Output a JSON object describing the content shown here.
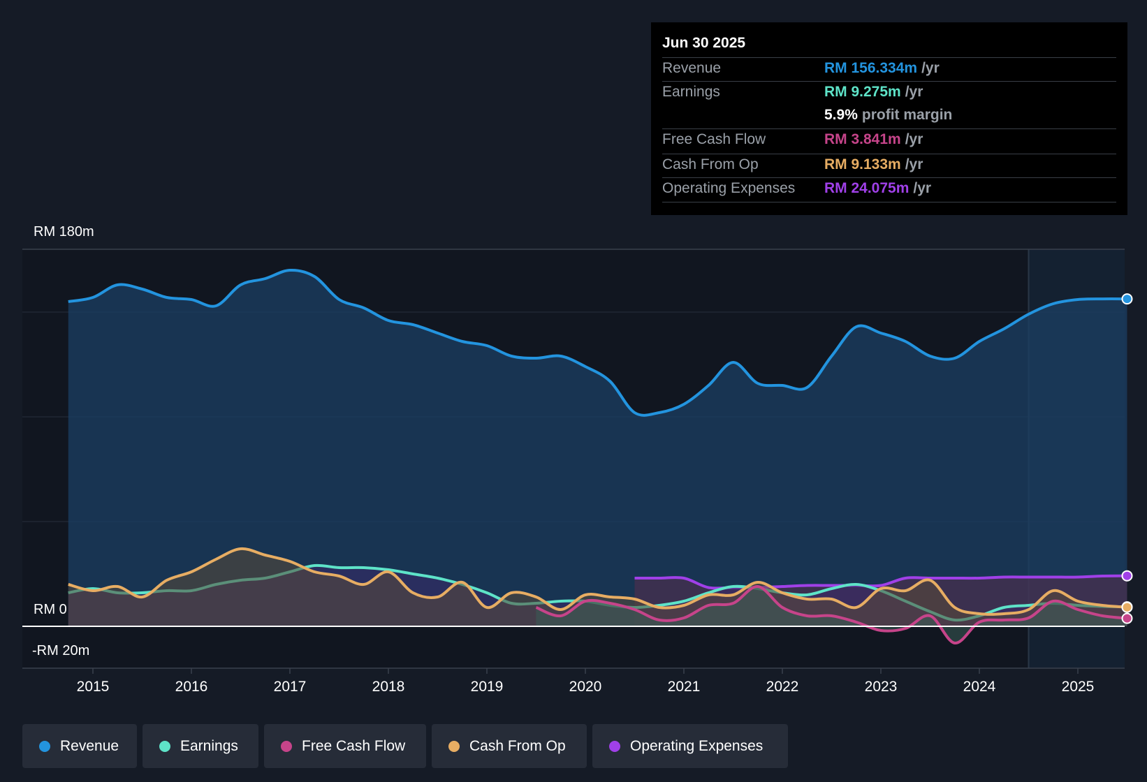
{
  "chart_data": {
    "type": "area",
    "x_range": [
      2014.3,
      2025.55
    ],
    "y_range": [
      -20,
      180
    ],
    "y_labels": {
      "top": "RM 180m",
      "zero": "RM 0",
      "bottom": "-RM 20m"
    },
    "x_ticks": [
      "2015",
      "2016",
      "2017",
      "2018",
      "2019",
      "2020",
      "2021",
      "2022",
      "2023",
      "2024",
      "2025"
    ],
    "forecast_start": 2024.5,
    "series": [
      {
        "name": "Revenue",
        "color": "#2394df",
        "fill": true,
        "points": [
          [
            2014.75,
            155
          ],
          [
            2015.0,
            157
          ],
          [
            2015.25,
            163
          ],
          [
            2015.5,
            161
          ],
          [
            2015.75,
            157
          ],
          [
            2016.0,
            156
          ],
          [
            2016.25,
            153
          ],
          [
            2016.5,
            163
          ],
          [
            2016.75,
            166
          ],
          [
            2017.0,
            170
          ],
          [
            2017.25,
            167
          ],
          [
            2017.5,
            156
          ],
          [
            2017.75,
            152
          ],
          [
            2018.0,
            146
          ],
          [
            2018.25,
            144
          ],
          [
            2018.5,
            140
          ],
          [
            2018.75,
            136
          ],
          [
            2019.0,
            134
          ],
          [
            2019.25,
            129
          ],
          [
            2019.5,
            128
          ],
          [
            2019.75,
            129
          ],
          [
            2020.0,
            124
          ],
          [
            2020.25,
            117
          ],
          [
            2020.5,
            102
          ],
          [
            2020.75,
            102
          ],
          [
            2021.0,
            106
          ],
          [
            2021.25,
            115
          ],
          [
            2021.5,
            126
          ],
          [
            2021.75,
            116
          ],
          [
            2022.0,
            115
          ],
          [
            2022.25,
            114
          ],
          [
            2022.5,
            129
          ],
          [
            2022.75,
            143
          ],
          [
            2023.0,
            140
          ],
          [
            2023.25,
            136
          ],
          [
            2023.5,
            129
          ],
          [
            2023.75,
            128
          ],
          [
            2024.0,
            136
          ],
          [
            2024.25,
            142
          ],
          [
            2024.5,
            149
          ],
          [
            2024.75,
            154
          ],
          [
            2025.0,
            156
          ],
          [
            2025.25,
            156.3
          ],
          [
            2025.5,
            156.3
          ]
        ]
      },
      {
        "name": "Earnings",
        "color": "#5ee3c8",
        "fill": true,
        "points": [
          [
            2014.75,
            16
          ],
          [
            2015.0,
            18
          ],
          [
            2015.25,
            16
          ],
          [
            2015.5,
            16
          ],
          [
            2015.75,
            17
          ],
          [
            2016.0,
            17
          ],
          [
            2016.25,
            20
          ],
          [
            2016.5,
            22
          ],
          [
            2016.75,
            23
          ],
          [
            2017.0,
            26
          ],
          [
            2017.25,
            29
          ],
          [
            2017.5,
            28
          ],
          [
            2017.75,
            28
          ],
          [
            2018.0,
            27
          ],
          [
            2018.25,
            25
          ],
          [
            2018.5,
            23
          ],
          [
            2018.75,
            20
          ],
          [
            2019.0,
            16
          ],
          [
            2019.25,
            11
          ],
          [
            2019.5,
            11
          ],
          [
            2019.75,
            12
          ],
          [
            2020.0,
            12
          ],
          [
            2020.25,
            10
          ],
          [
            2020.5,
            9
          ],
          [
            2020.75,
            10
          ],
          [
            2021.0,
            12
          ],
          [
            2021.25,
            16
          ],
          [
            2021.5,
            19
          ],
          [
            2021.75,
            18
          ],
          [
            2022.0,
            16
          ],
          [
            2022.25,
            15
          ],
          [
            2022.5,
            18
          ],
          [
            2022.75,
            20
          ],
          [
            2023.0,
            17
          ],
          [
            2023.25,
            12
          ],
          [
            2023.5,
            7
          ],
          [
            2023.75,
            3
          ],
          [
            2024.0,
            5
          ],
          [
            2024.25,
            9
          ],
          [
            2024.5,
            10
          ],
          [
            2024.75,
            11
          ],
          [
            2025.0,
            10
          ],
          [
            2025.25,
            9.5
          ],
          [
            2025.5,
            9.3
          ]
        ]
      },
      {
        "name": "Free Cash Flow",
        "color": "#c6448a",
        "fill": true,
        "points": [
          [
            2019.5,
            9
          ],
          [
            2019.75,
            5
          ],
          [
            2020.0,
            12
          ],
          [
            2020.25,
            11
          ],
          [
            2020.5,
            8
          ],
          [
            2020.75,
            3
          ],
          [
            2021.0,
            4
          ],
          [
            2021.25,
            10
          ],
          [
            2021.5,
            11
          ],
          [
            2021.75,
            19
          ],
          [
            2022.0,
            9
          ],
          [
            2022.25,
            5
          ],
          [
            2022.5,
            5
          ],
          [
            2022.75,
            2
          ],
          [
            2023.0,
            -2
          ],
          [
            2023.25,
            -1
          ],
          [
            2023.5,
            5
          ],
          [
            2023.75,
            -8
          ],
          [
            2024.0,
            2
          ],
          [
            2024.25,
            3
          ],
          [
            2024.5,
            4
          ],
          [
            2024.75,
            12
          ],
          [
            2025.0,
            8
          ],
          [
            2025.25,
            5
          ],
          [
            2025.5,
            3.8
          ]
        ]
      },
      {
        "name": "Cash From Op",
        "color": "#e7ad63",
        "fill": true,
        "points": [
          [
            2014.75,
            20
          ],
          [
            2015.0,
            17
          ],
          [
            2015.25,
            19
          ],
          [
            2015.5,
            14
          ],
          [
            2015.75,
            22
          ],
          [
            2016.0,
            26
          ],
          [
            2016.25,
            32
          ],
          [
            2016.5,
            37
          ],
          [
            2016.75,
            34
          ],
          [
            2017.0,
            31
          ],
          [
            2017.25,
            26
          ],
          [
            2017.5,
            24
          ],
          [
            2017.75,
            20
          ],
          [
            2018.0,
            26
          ],
          [
            2018.25,
            16
          ],
          [
            2018.5,
            14
          ],
          [
            2018.75,
            21
          ],
          [
            2019.0,
            9
          ],
          [
            2019.25,
            16
          ],
          [
            2019.5,
            14
          ],
          [
            2019.75,
            8
          ],
          [
            2020.0,
            15
          ],
          [
            2020.25,
            14
          ],
          [
            2020.5,
            13
          ],
          [
            2020.75,
            9
          ],
          [
            2021.0,
            10
          ],
          [
            2021.25,
            15
          ],
          [
            2021.5,
            15
          ],
          [
            2021.75,
            21
          ],
          [
            2022.0,
            16
          ],
          [
            2022.25,
            13
          ],
          [
            2022.5,
            13
          ],
          [
            2022.75,
            9
          ],
          [
            2023.0,
            18
          ],
          [
            2023.25,
            17
          ],
          [
            2023.5,
            22
          ],
          [
            2023.75,
            9
          ],
          [
            2024.0,
            6
          ],
          [
            2024.25,
            6
          ],
          [
            2024.5,
            8
          ],
          [
            2024.75,
            17
          ],
          [
            2025.0,
            12
          ],
          [
            2025.25,
            10
          ],
          [
            2025.5,
            9.1
          ]
        ]
      },
      {
        "name": "Operating Expenses",
        "color": "#a040e8",
        "fill": true,
        "points": [
          [
            2020.5,
            23
          ],
          [
            2020.75,
            23
          ],
          [
            2021.0,
            23
          ],
          [
            2021.25,
            18.5
          ],
          [
            2021.5,
            18.5
          ],
          [
            2021.75,
            18.5
          ],
          [
            2022.0,
            19
          ],
          [
            2022.25,
            19.5
          ],
          [
            2022.5,
            19.5
          ],
          [
            2022.75,
            19.5
          ],
          [
            2023.0,
            19.5
          ],
          [
            2023.25,
            23
          ],
          [
            2023.5,
            23
          ],
          [
            2023.75,
            23
          ],
          [
            2024.0,
            23
          ],
          [
            2024.25,
            23.5
          ],
          [
            2024.5,
            23.5
          ],
          [
            2024.75,
            23.5
          ],
          [
            2025.0,
            23.5
          ],
          [
            2025.25,
            24
          ],
          [
            2025.5,
            24.1
          ]
        ]
      }
    ]
  },
  "tooltip": {
    "date": "Jun 30 2025",
    "rows": [
      {
        "label": "Revenue",
        "value": "RM 156.334m",
        "unit": "/yr",
        "color": "#2394df"
      },
      {
        "label": "Earnings",
        "value": "RM 9.275m",
        "unit": "/yr",
        "color": "#5ee3c8"
      },
      {
        "label": "",
        "value": "5.9%",
        "unit": "profit margin",
        "color": "#ffffff"
      },
      {
        "label": "Free Cash Flow",
        "value": "RM 3.841m",
        "unit": "/yr",
        "color": "#c6448a"
      },
      {
        "label": "Cash From Op",
        "value": "RM 9.133m",
        "unit": "/yr",
        "color": "#e7ad63"
      },
      {
        "label": "Operating Expenses",
        "value": "RM 24.075m",
        "unit": "/yr",
        "color": "#a040e8"
      }
    ]
  },
  "legend": [
    {
      "label": "Revenue",
      "color": "#2394df"
    },
    {
      "label": "Earnings",
      "color": "#5ee3c8"
    },
    {
      "label": "Free Cash Flow",
      "color": "#c6448a"
    },
    {
      "label": "Cash From Op",
      "color": "#e7ad63"
    },
    {
      "label": "Operating Expenses",
      "color": "#a040e8"
    }
  ]
}
